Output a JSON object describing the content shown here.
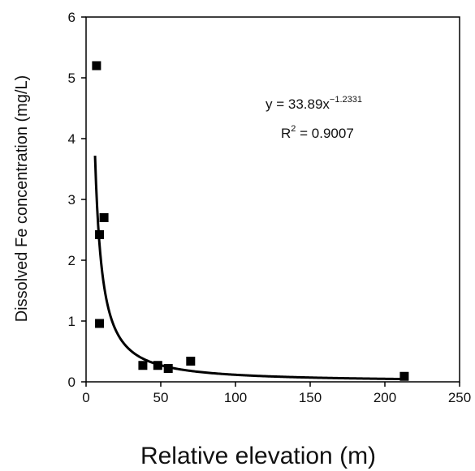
{
  "chart_data": {
    "type": "scatter",
    "xlabel": "Relative elevation (m)",
    "ylabel": "Dissolved Fe concentration (mg/L)",
    "xlim": [
      0,
      250
    ],
    "ylim": [
      0,
      6
    ],
    "xticks": [
      "0",
      "50",
      "100",
      "150",
      "200",
      "250"
    ],
    "yticks": [
      "0",
      "1",
      "2",
      "3",
      "4",
      "5",
      "6"
    ],
    "grid": false,
    "points": [
      {
        "x": 7,
        "y": 5.2
      },
      {
        "x": 12,
        "y": 2.7
      },
      {
        "x": 9,
        "y": 2.42
      },
      {
        "x": 9,
        "y": 0.96
      },
      {
        "x": 38,
        "y": 0.27
      },
      {
        "x": 48,
        "y": 0.27
      },
      {
        "x": 55,
        "y": 0.22
      },
      {
        "x": 70,
        "y": 0.34
      },
      {
        "x": 213,
        "y": 0.09
      }
    ],
    "fit": {
      "type": "power",
      "a": 33.89,
      "b": -1.2331,
      "x_range": [
        6,
        213
      ]
    },
    "annotation": {
      "equation_prefix": "y = 33.89x",
      "equation_exponent": "−1.2331",
      "r2_prefix": "R",
      "r2_superscript": "2",
      "r2_suffix": " = 0.9007"
    },
    "colors": {
      "marker": "#000000",
      "fit_line": "#000000",
      "axis": "#000000"
    }
  }
}
